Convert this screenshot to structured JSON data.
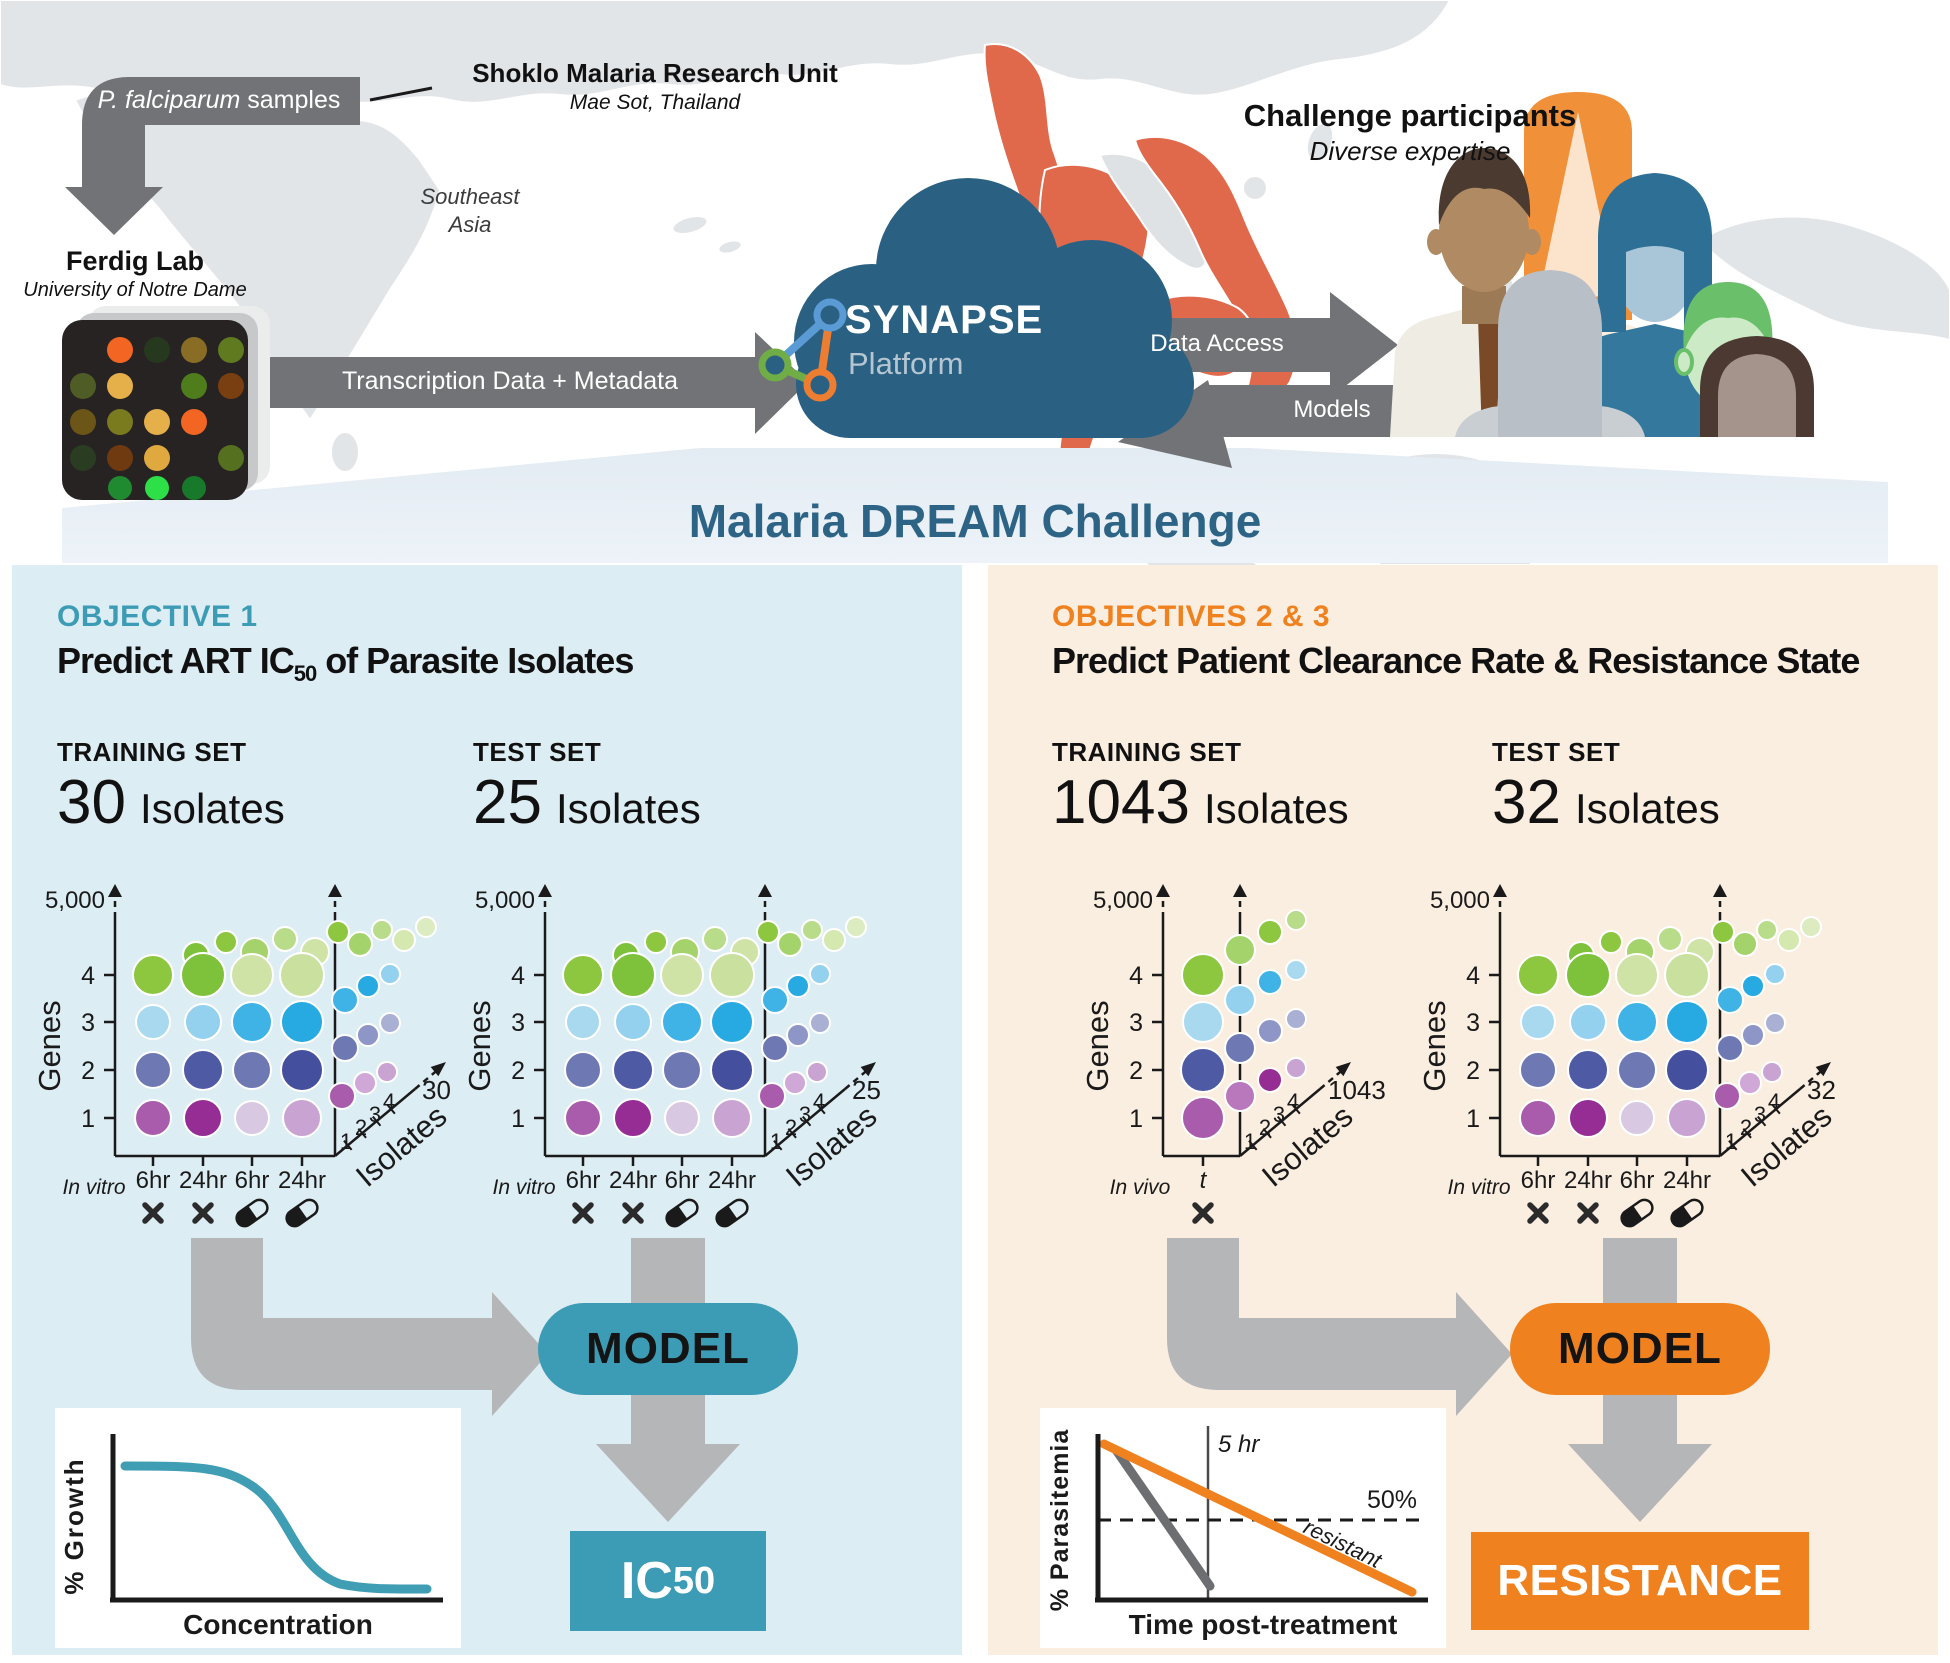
{
  "top": {
    "sample_label_italic": "P. falciparum",
    "sample_label_rest": " samples",
    "research_unit": {
      "name": "Shoklo Malaria Research Unit",
      "location": "Mae Sot, Thailand"
    },
    "region_line1": "Southeast",
    "region_line2": "Asia",
    "lab": {
      "name": "Ferdig Lab",
      "affiliation": "University of Notre Dame"
    },
    "transcription_label": "Transcription Data + Metadata",
    "platform": {
      "name": "SYNAPSE",
      "subtitle": "Platform"
    },
    "arrow_data_access": "Data Access",
    "arrow_models": "Models",
    "participants": {
      "title": "Challenge participants",
      "subtitle": "Diverse expertise"
    },
    "banner": "Malaria DREAM Challenge"
  },
  "panels": [
    {
      "kicker": "OBJECTIVE 1",
      "accent": "#3d9cb5",
      "title_pre": "Predict ART IC",
      "title_sub": "50",
      "title_post": " of Parasite Isolates",
      "training": {
        "label": "TRAINING SET",
        "count": "30",
        "unit": "Isolates"
      },
      "test": {
        "label": "TEST SET",
        "count": "25",
        "unit": "Isolates"
      },
      "model_label": "MODEL",
      "output_main": "IC",
      "output_sub": "50",
      "inset": {
        "ylabel": "% Growth",
        "xlabel": "Concentration"
      }
    },
    {
      "kicker": "OBJECTIVES 2 & 3",
      "accent": "#f0811f",
      "title": "Predict Patient Clearance Rate & Resistance State",
      "training": {
        "label": "TRAINING SET",
        "count": "1043",
        "unit": "Isolates"
      },
      "test": {
        "label": "TEST SET",
        "count": "32",
        "unit": "Isolates"
      },
      "model_label": "MODEL",
      "output": "RESISTANCE",
      "inset": {
        "ylabel": "% Parasitemia",
        "xlabel": "Time post-treatment",
        "vline_label": "5 hr",
        "hline_label": "50%",
        "curve_label": "resistant"
      }
    }
  ],
  "chart_data": [
    {
      "type": "bubble",
      "name": "Objective 1 training set transcription cube",
      "n_isolates": 30,
      "y_axis": {
        "label": "Genes",
        "ticks": [
          "1",
          "2",
          "3",
          "4"
        ],
        "top_label": "5,000"
      },
      "x_axis": {
        "context": "In vitro",
        "ticks": [
          "6hr",
          "24hr",
          "6hr",
          "24hr"
        ],
        "symbols": [
          "x",
          "x",
          "pill",
          "pill"
        ]
      },
      "z_axis": {
        "label": "Isolates",
        "ticks": [
          "1",
          "2",
          "3",
          "4"
        ],
        "max_label": "30"
      }
    },
    {
      "type": "bubble",
      "name": "Objective 1 test set transcription cube",
      "n_isolates": 25,
      "y_axis": {
        "label": "Genes",
        "ticks": [
          "1",
          "2",
          "3",
          "4"
        ],
        "top_label": "5,000"
      },
      "x_axis": {
        "context": "In vitro",
        "ticks": [
          "6hr",
          "24hr",
          "6hr",
          "24hr"
        ],
        "symbols": [
          "x",
          "x",
          "pill",
          "pill"
        ]
      },
      "z_axis": {
        "label": "Isolates",
        "ticks": [
          "1",
          "2",
          "3",
          "4"
        ],
        "max_label": "25"
      }
    },
    {
      "type": "bubble",
      "name": "Objectives 2 and 3 training set transcription cube",
      "n_isolates": 1043,
      "y_axis": {
        "label": "Genes",
        "ticks": [
          "1",
          "2",
          "3",
          "4"
        ],
        "top_label": "5,000"
      },
      "x_axis": {
        "context": "In vivo",
        "ticks": [
          "t"
        ],
        "symbols": [
          "x"
        ]
      },
      "z_axis": {
        "label": "Isolates",
        "ticks": [
          "1",
          "2",
          "3",
          "4"
        ],
        "max_label": "1043"
      }
    },
    {
      "type": "bubble",
      "name": "Objectives 2 and 3 test set transcription cube",
      "n_isolates": 32,
      "y_axis": {
        "label": "Genes",
        "ticks": [
          "1",
          "2",
          "3",
          "4"
        ],
        "top_label": "5,000"
      },
      "x_axis": {
        "context": "In vitro",
        "ticks": [
          "6hr",
          "24hr",
          "6hr",
          "24hr"
        ],
        "symbols": [
          "x",
          "x",
          "pill",
          "pill"
        ]
      },
      "z_axis": {
        "label": "Isolates",
        "ticks": [
          "1",
          "2",
          "3",
          "4"
        ],
        "max_label": "32"
      }
    }
  ],
  "microarray": {
    "grid": [
      [
        null,
        "#f26522",
        "#26391e",
        "#8a6d24",
        "#5f7a1f"
      ],
      [
        "#4f5c26",
        "#e5b04a",
        null,
        "#4f7d1c",
        "#7a3f10"
      ],
      [
        "#6b5617",
        "#7a7a1f",
        "#e5b04a",
        "#f26522",
        null
      ],
      [
        "#2a3d22",
        "#703a10",
        "#e0a93f",
        null,
        "#55701f"
      ],
      [
        null,
        "#1f8a2f",
        "#2ee048",
        "#177a2a",
        null
      ]
    ]
  },
  "colors": {
    "band_gray": "#727376",
    "arrow_gray": "#b5b6b8",
    "teal": "#3d9cb5",
    "orange": "#f0811f",
    "cloud_blue": "#2a6183",
    "panel_left_bg": "#ddedf4",
    "panel_right_bg": "#faeee0",
    "map_land": "#e2e5e8",
    "map_highlight": "#e0694c",
    "title_blue": "#2d6486",
    "bubbles": {
      "green0": "#8dc63f",
      "green1": "#7ec13a",
      "green2": "#cfe3a6",
      "green3": "#c9e09f",
      "green4": "#a5d36b",
      "green5": "#b9dc8a",
      "green6": "#d4e8b0",
      "green7": "#dcecc0",
      "blue0": "#a9d9ef",
      "blue1": "#93d1ef",
      "blue2": "#3fb3e6",
      "blue3": "#27a9e1",
      "indigo0": "#6e79b4",
      "indigo1": "#4f5aa5",
      "indigo2": "#444f9e",
      "indigo3": "#8d96c6",
      "indigo4": "#a9b0d4",
      "purple0": "#a85cab",
      "purple1": "#952d95",
      "purple2": "#d9c8e1",
      "purple3": "#c9a3d2",
      "purple4": "#d0a8d8",
      "purple5": "#b878bb"
    }
  }
}
